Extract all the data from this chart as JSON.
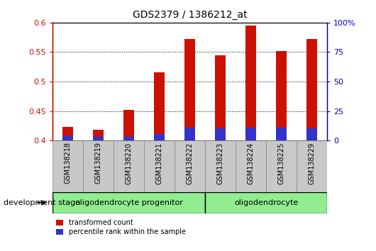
{
  "title": "GDS2379 / 1386212_at",
  "samples": [
    "GSM138218",
    "GSM138219",
    "GSM138220",
    "GSM138221",
    "GSM138222",
    "GSM138223",
    "GSM138224",
    "GSM138225",
    "GSM138229"
  ],
  "transformed_count": [
    0.423,
    0.418,
    0.452,
    0.516,
    0.572,
    0.545,
    0.595,
    0.552,
    0.572
  ],
  "percentile_rank": [
    0.408,
    0.406,
    0.406,
    0.411,
    0.422,
    0.421,
    0.422,
    0.422,
    0.421
  ],
  "bar_bottom": 0.4,
  "ylim": [
    0.4,
    0.6
  ],
  "yticks_left": [
    0.4,
    0.45,
    0.5,
    0.55,
    0.6
  ],
  "yticks_right": [
    0,
    25,
    50,
    75,
    100
  ],
  "bar_color_red": "#cc1100",
  "bar_color_blue": "#3333cc",
  "groups": [
    {
      "label": "oligodendrocyte progenitor",
      "start": 0,
      "end": 5,
      "color": "#90ee90"
    },
    {
      "label": "oligodendrocyte",
      "start": 5,
      "end": 9,
      "color": "#90ee90"
    }
  ],
  "xlabel": "development stage",
  "legend_items": [
    {
      "label": "transformed count",
      "color": "#cc1100"
    },
    {
      "label": "percentile rank within the sample",
      "color": "#3333cc"
    }
  ],
  "bar_width": 0.35,
  "tick_label_fontsize": 7,
  "axis_label_color_left": "#cc1100",
  "axis_label_color_right": "#0000cc",
  "tickbox_color": "#c8c8c8",
  "tickbox_edge": "#888888"
}
